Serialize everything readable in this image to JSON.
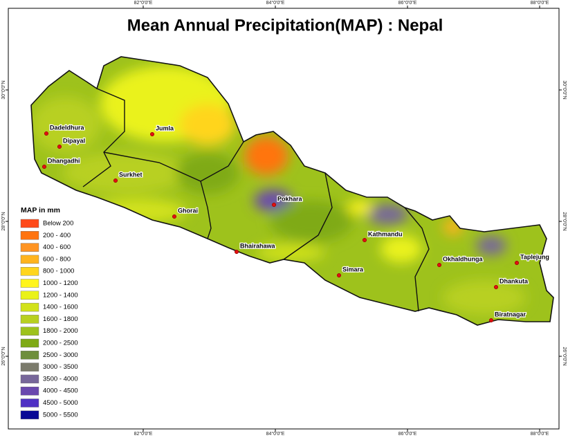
{
  "title": "Mean Annual Precipitation(MAP) : Nepal",
  "graticule": {
    "lon": [
      "82°0'0\"E",
      "84°0'0\"E",
      "86°0'0\"E",
      "88°0'0\"E"
    ],
    "lat": [
      "30°0'0\"N",
      "28°0'0\"N",
      "26°0'0\"N"
    ]
  },
  "cities": [
    "Dadeldhura",
    "Dipayal",
    "Dhangadhi",
    "Jumla",
    "Surkhet",
    "Ghorai",
    "Pokhara",
    "Bhairahawa",
    "Kathmandu",
    "Simara",
    "Okhaldhunga",
    "Taplejung",
    "Dhankuta",
    "Biratnagar"
  ],
  "legend": {
    "title": "MAP in mm",
    "items": [
      {
        "label": "Below 200",
        "color": "#ff4a1a"
      },
      {
        "label": "200 - 400",
        "color": "#ff7410"
      },
      {
        "label": "400 - 600",
        "color": "#ff9422"
      },
      {
        "label": "600 - 800",
        "color": "#ffb41e"
      },
      {
        "label": "800 - 1000",
        "color": "#ffd51c"
      },
      {
        "label": "1000 - 1200",
        "color": "#fff51c"
      },
      {
        "label": "1200 - 1400",
        "color": "#eaf21a"
      },
      {
        "label": "1400 - 1600",
        "color": "#d2e21a"
      },
      {
        "label": "1600 - 1800",
        "color": "#b8d020"
      },
      {
        "label": "1800 - 2000",
        "color": "#9ec21c"
      },
      {
        "label": "2000 - 2500",
        "color": "#7faa14"
      },
      {
        "label": "2500 - 3000",
        "color": "#6e8e3c"
      },
      {
        "label": "3000 - 3500",
        "color": "#7b7b6c"
      },
      {
        "label": "3500 - 4000",
        "color": "#77679a"
      },
      {
        "label": "4000 - 4500",
        "color": "#6a48ae"
      },
      {
        "label": "4500 - 5000",
        "color": "#4f30c4"
      },
      {
        "label": "5000 - 5500",
        "color": "#0a0a96"
      }
    ]
  }
}
